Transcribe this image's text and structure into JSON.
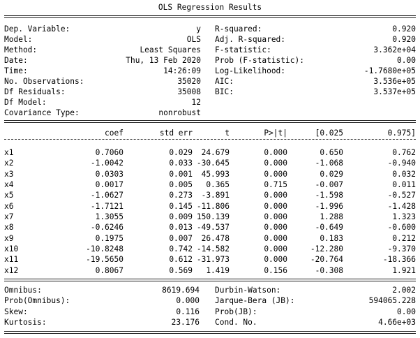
{
  "title": "OLS Regression Results",
  "header": {
    "left": [
      {
        "label": "Dep. Variable:",
        "value": "y"
      },
      {
        "label": "Model:",
        "value": "OLS"
      },
      {
        "label": "Method:",
        "value": "Least Squares"
      },
      {
        "label": "Date:",
        "value": "Thu, 13 Feb 2020"
      },
      {
        "label": "Time:",
        "value": "14:26:09"
      },
      {
        "label": "No. Observations:",
        "value": "35020"
      },
      {
        "label": "Df Residuals:",
        "value": "35008"
      },
      {
        "label": "Df Model:",
        "value": "12"
      },
      {
        "label": "Covariance Type:",
        "value": "nonrobust"
      }
    ],
    "right": [
      {
        "label": "R-squared:",
        "value": "0.920"
      },
      {
        "label": "Adj. R-squared:",
        "value": "0.920"
      },
      {
        "label": "F-statistic:",
        "value": "3.362e+04"
      },
      {
        "label": "Prob (F-statistic):",
        "value": "0.00"
      },
      {
        "label": "Log-Likelihood:",
        "value": "-1.7680e+05"
      },
      {
        "label": "AIC:",
        "value": "3.536e+05"
      },
      {
        "label": "BIC:",
        "value": "3.537e+05"
      }
    ]
  },
  "coef_table": {
    "columns": [
      "coef",
      "std err",
      "t",
      "P>|t|",
      "[0.025",
      "0.975]"
    ],
    "rows": [
      {
        "name": "x1",
        "values": [
          "0.7060",
          "0.029",
          "24.679",
          "0.000",
          "0.650",
          "0.762"
        ]
      },
      {
        "name": "x2",
        "values": [
          "-1.0042",
          "0.033",
          "-30.645",
          "0.000",
          "-1.068",
          "-0.940"
        ]
      },
      {
        "name": "x3",
        "values": [
          "0.0303",
          "0.001",
          "45.993",
          "0.000",
          "0.029",
          "0.032"
        ]
      },
      {
        "name": "x4",
        "values": [
          "0.0017",
          "0.005",
          "0.365",
          "0.715",
          "-0.007",
          "0.011"
        ]
      },
      {
        "name": "x5",
        "values": [
          "-1.0627",
          "0.273",
          "-3.891",
          "0.000",
          "-1.598",
          "-0.527"
        ]
      },
      {
        "name": "x6",
        "values": [
          "-1.7121",
          "0.145",
          "-11.806",
          "0.000",
          "-1.996",
          "-1.428"
        ]
      },
      {
        "name": "x7",
        "values": [
          "1.3055",
          "0.009",
          "150.139",
          "0.000",
          "1.288",
          "1.323"
        ]
      },
      {
        "name": "x8",
        "values": [
          "-0.6246",
          "0.013",
          "-49.537",
          "0.000",
          "-0.649",
          "-0.600"
        ]
      },
      {
        "name": "x9",
        "values": [
          "0.1975",
          "0.007",
          "26.478",
          "0.000",
          "0.183",
          "0.212"
        ]
      },
      {
        "name": "x10",
        "values": [
          "-10.8248",
          "0.742",
          "-14.582",
          "0.000",
          "-12.280",
          "-9.370"
        ]
      },
      {
        "name": "x11",
        "values": [
          "-19.5650",
          "0.612",
          "-31.973",
          "0.000",
          "-20.764",
          "-18.366"
        ]
      },
      {
        "name": "x12",
        "values": [
          "0.8067",
          "0.569",
          "1.419",
          "0.156",
          "-0.308",
          "1.921"
        ]
      }
    ]
  },
  "diagnostics": {
    "left": [
      {
        "label": "Omnibus:",
        "value": "8619.694"
      },
      {
        "label": "Prob(Omnibus):",
        "value": "0.000"
      },
      {
        "label": "Skew:",
        "value": "0.116"
      },
      {
        "label": "Kurtosis:",
        "value": "23.176"
      }
    ],
    "right": [
      {
        "label": "Durbin-Watson:",
        "value": "2.002"
      },
      {
        "label": "Jarque-Bera (JB):",
        "value": "594065.228"
      },
      {
        "label": "Prob(JB):",
        "value": "0.00"
      },
      {
        "label": "Cond. No.",
        "value": "4.66e+03"
      }
    ]
  }
}
